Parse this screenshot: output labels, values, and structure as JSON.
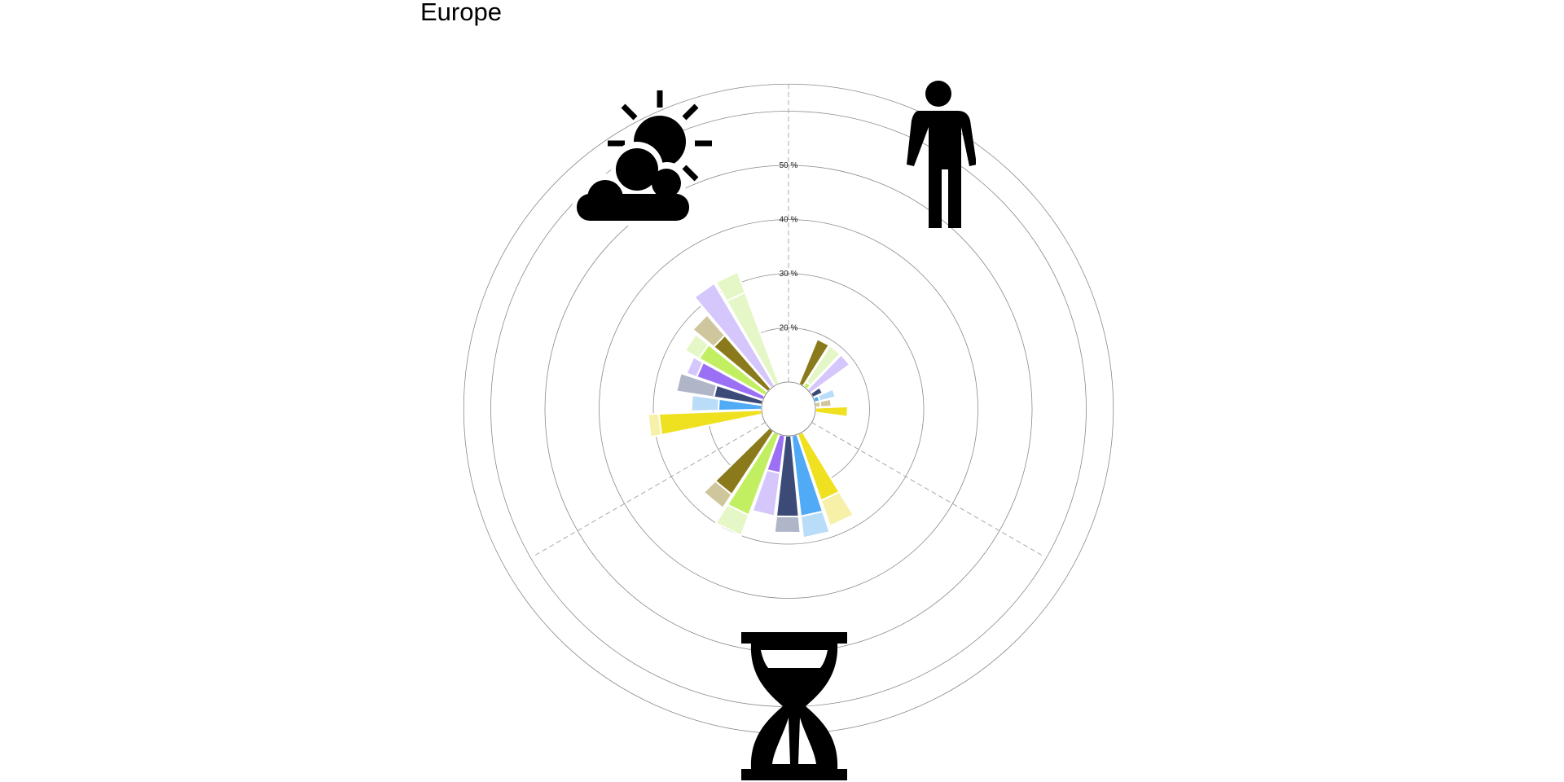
{
  "page": {
    "title": "Europe"
  },
  "icons": {
    "sector_1": "sun-cloud-icon",
    "sector_2": "person-icon",
    "sector_3": "hourglass-icon"
  },
  "chart_data": {
    "type": "radial-stacked-bar",
    "title": "Europe",
    "radial_axis": {
      "ticks": [
        20,
        30,
        40,
        50
      ],
      "tick_labels": [
        "20 %",
        "30 %",
        "40 %",
        "50 %"
      ],
      "max": 55
    },
    "grid": true,
    "sectors": [
      {
        "name": "sun-cloud-icon",
        "bars": [
          {
            "dark": 9,
            "light": 0,
            "dark_color": "#8a7a1c",
            "light_color": "#cfc69e"
          },
          {
            "dark": 1,
            "light": 8,
            "dark_color": "#c2ef62",
            "light_color": "#e5f7c6"
          },
          {
            "dark": 0,
            "light": 9,
            "dark_color": "#9b70f5",
            "light_color": "#d5c6fb"
          },
          {
            "dark": 2,
            "light": 0,
            "dark_color": "#3c4a78",
            "light_color": "#b0b6c8"
          },
          {
            "dark": 1,
            "light": 3,
            "dark_color": "#50aaf5",
            "light_color": "#b9dcf8"
          },
          {
            "dark": 1,
            "light": 2,
            "dark_color": "#cfc69e",
            "light_color": "#cfc69e"
          },
          {
            "dark": 6,
            "light": 0,
            "dark_color": "#efe11f",
            "light_color": "#f7f0a8"
          }
        ]
      },
      {
        "name": "person-icon",
        "bars": [
          {
            "dark": 13,
            "light": 5,
            "dark_color": "#efe11f",
            "light_color": "#f7f0a8"
          },
          {
            "dark": 15,
            "light": 4,
            "dark_color": "#50aaf5",
            "light_color": "#b9dcf8"
          },
          {
            "dark": 15,
            "light": 3,
            "dark_color": "#3c4a78",
            "light_color": "#b0b6c8"
          },
          {
            "dark": 7,
            "light": 8,
            "dark_color": "#9b70f5",
            "light_color": "#d5c6fb"
          },
          {
            "dark": 16,
            "light": 4,
            "dark_color": "#c2ef62",
            "light_color": "#e5f7c6"
          },
          {
            "dark": 14,
            "light": 3,
            "dark_color": "#8a7a1c",
            "light_color": "#cfc69e"
          }
        ]
      },
      {
        "name": "hourglass-icon",
        "bars": [
          {
            "dark": 19,
            "light": 2,
            "dark_color": "#efe11f",
            "light_color": "#f7f0a8"
          },
          {
            "dark": 8,
            "light": 5,
            "dark_color": "#50aaf5",
            "light_color": "#b9dcf8"
          },
          {
            "dark": 9,
            "light": 7,
            "dark_color": "#3c4a78",
            "light_color": "#b0b6c8"
          },
          {
            "dark": 13,
            "light": 2,
            "dark_color": "#9b70f5",
            "light_color": "#d5c6fb"
          },
          {
            "dark": 14,
            "light": 3,
            "dark_color": "#c2ef62",
            "light_color": "#e5f7c6"
          },
          {
            "dark": 13,
            "light": 5,
            "dark_color": "#8a7a1c",
            "light_color": "#cfc69e"
          },
          {
            "dark": 22,
            "light": 0,
            "dark_color": "#d5c6fb",
            "light_color": "#d5c6fb"
          },
          {
            "dark": 18,
            "light": 4,
            "dark_color": "#e5f7c6",
            "light_color": "#e5f7c6"
          }
        ]
      }
    ]
  }
}
